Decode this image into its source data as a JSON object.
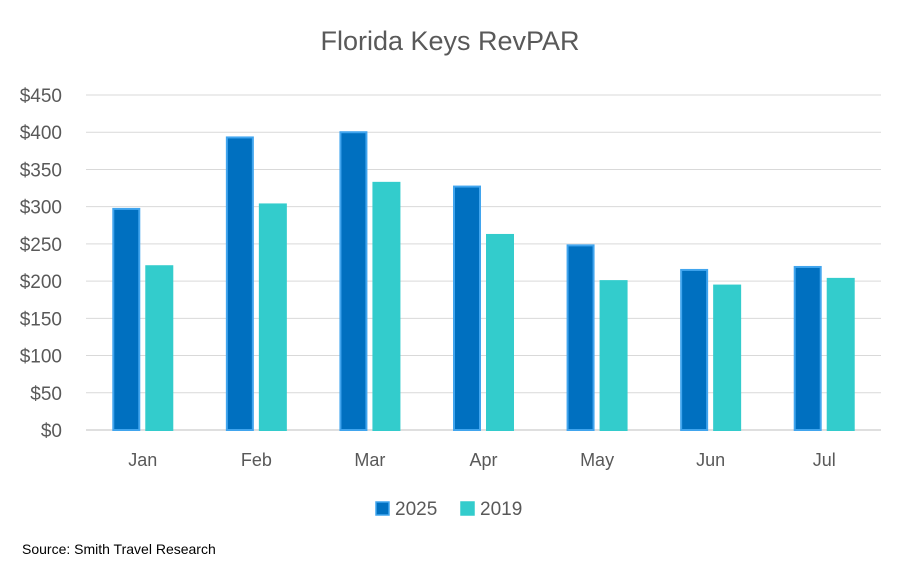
{
  "chart_data": {
    "type": "bar",
    "title": "Florida Keys RevPAR",
    "categories": [
      "Jan",
      "Feb",
      "Mar",
      "Apr",
      "May",
      "Jun",
      "Jul"
    ],
    "series": [
      {
        "name": "2025",
        "values": [
          297,
          393,
          400,
          327,
          248,
          215,
          219
        ],
        "color": "#0070c0",
        "border": "#41a5ee"
      },
      {
        "name": "2019",
        "values": [
          220,
          303,
          332,
          262,
          200,
          194,
          203
        ],
        "color": "#33cccc",
        "border": "#33cccc"
      }
    ],
    "xlabel": "",
    "ylabel": "",
    "ylim": [
      0,
      450
    ],
    "yticks": [
      0,
      50,
      100,
      150,
      200,
      250,
      300,
      350,
      400,
      450
    ],
    "ytick_labels": [
      "$0",
      "$50",
      "$100",
      "$150",
      "$200",
      "$250",
      "$300",
      "$350",
      "$400",
      "$450"
    ],
    "grid": true,
    "legend_position": "bottom"
  },
  "source": "Source: Smith Travel Research"
}
